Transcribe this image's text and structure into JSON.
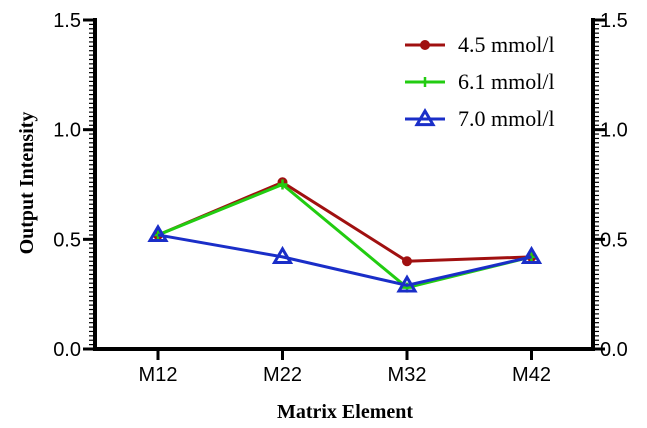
{
  "chart_data": {
    "type": "line",
    "title": "",
    "xlabel": "Matrix Element",
    "ylabel": "Output Intensity",
    "categories": [
      "M12",
      "M22",
      "M32",
      "M42"
    ],
    "ylim": [
      0.0,
      1.5
    ],
    "yticks": [
      "0.0",
      "0.5",
      "1.0",
      "1.5"
    ],
    "y2ticks": [
      "0.0",
      "0.5",
      "1.0",
      "1.5"
    ],
    "grid": false,
    "legend_position": "top-right",
    "series": [
      {
        "name": "4.5 mmol/l",
        "values": [
          0.52,
          0.76,
          0.4,
          0.42
        ],
        "color": "#a01010",
        "marker": "circle"
      },
      {
        "name": "6.1 mmol/l",
        "values": [
          0.52,
          0.75,
          0.28,
          0.42
        ],
        "color": "#22cc11",
        "marker": "plus"
      },
      {
        "name": "7.0 mmol/l",
        "values": [
          0.52,
          0.42,
          0.29,
          0.42
        ],
        "color": "#1a2ec8",
        "marker": "triangle"
      }
    ]
  }
}
